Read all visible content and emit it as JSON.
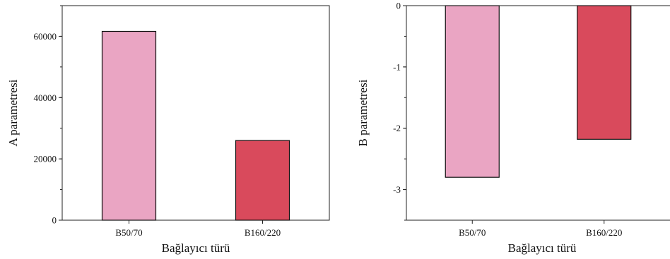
{
  "chart_data": [
    {
      "type": "bar",
      "categories": [
        "B50/70",
        "B160/220"
      ],
      "values": [
        61600,
        26000
      ],
      "xlabel": "Bağlayıcı türü",
      "ylabel": "A parametresi",
      "ylim": [
        0,
        70000
      ],
      "yticks": [
        "0",
        "20000",
        "40000",
        "60000"
      ],
      "grid": false,
      "bar_colors": [
        "#eaa5c3",
        "#d94a5c"
      ]
    },
    {
      "type": "bar",
      "categories": [
        "B50/70",
        "B160/220"
      ],
      "values": [
        -2.8,
        -2.18
      ],
      "xlabel": "Bağlayıcı türü",
      "ylabel": "B parametresi",
      "ylim": [
        -3.5,
        0
      ],
      "yticks": [
        "0",
        "-1",
        "-2",
        "-3"
      ],
      "grid": false,
      "bar_colors": [
        "#eaa5c3",
        "#d94a5c"
      ]
    }
  ]
}
